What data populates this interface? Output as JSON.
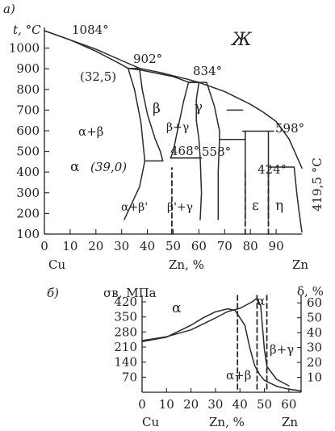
{
  "chart_data": [
    {
      "panel_label": "а)",
      "type": "line",
      "ylabel": "t, °C",
      "x_ticks": [
        "0",
        "10",
        "20",
        "30",
        "40",
        "50",
        "60",
        "70",
        "80",
        "90"
      ],
      "y_ticks": [
        "100",
        "200",
        "300",
        "400",
        "500",
        "600",
        "700",
        "800",
        "900",
        "1000"
      ],
      "x_end_labels": {
        "left": "Cu",
        "center": "Zn, %",
        "right": "Zn"
      },
      "xlim": [
        0,
        100
      ],
      "ylim": [
        100,
        1100
      ],
      "liquid_label": "Ж",
      "temperature_labels": [
        {
          "text": "1084°",
          "x": 0,
          "y": 1084
        },
        {
          "text": "902°",
          "x": 37,
          "y": 902
        },
        {
          "text": "834°",
          "x": 60,
          "y": 834
        },
        {
          "text": "598°",
          "x": 89,
          "y": 598
        },
        {
          "text": "468°",
          "x": 47,
          "y": 468
        },
        {
          "text": "558°",
          "x": 73,
          "y": 558
        },
        {
          "text": "424°",
          "x": 87,
          "y": 424
        },
        {
          "text": "419,5 °C",
          "x": 100,
          "y": 419.5
        }
      ],
      "composition_labels": [
        {
          "text": "(32,5)",
          "x": 32.5,
          "y": 902
        },
        {
          "text": "(39,0)",
          "x": 39.0,
          "y": 454
        }
      ],
      "phase_labels": [
        "β",
        "α+β",
        "α",
        "γ",
        "β+γ",
        "ε",
        "η",
        "α+β'",
        "β'+γ"
      ],
      "curves": [
        {
          "name": "liquidus",
          "x": [
            0,
            10,
            20,
            30,
            37,
            45,
            50,
            55,
            60,
            70,
            80,
            85,
            90,
            95,
            100
          ],
          "y": [
            1084,
            1040,
            995,
            940,
            902,
            882,
            866,
            851,
            834,
            790,
            728,
            690,
            645,
            560,
            419.5
          ]
        },
        {
          "name": "solidus",
          "x": [
            0,
            10,
            20,
            30,
            32.5,
            37,
            50,
            56,
            60
          ],
          "y": [
            1084,
            1040,
            985,
            920,
            902,
            895,
            862,
            835,
            834
          ]
        },
        {
          "name": "alpha_solvus",
          "x": [
            32.5,
            35,
            37.5,
            39,
            37,
            34,
            31
          ],
          "y": [
            902,
            800,
            640,
            454,
            330,
            250,
            170
          ]
        },
        {
          "name": "beta_left_boundary",
          "x": [
            37,
            38,
            40,
            43,
            45,
            46
          ],
          "y": [
            895,
            800,
            680,
            560,
            500,
            454
          ]
        },
        {
          "name": "beta_right_boundary",
          "x": [
            56,
            54,
            52,
            51,
            50,
            49
          ],
          "y": [
            835,
            740,
            620,
            560,
            500,
            468
          ]
        },
        {
          "name": "gamma_left_boundary",
          "x": [
            60,
            59,
            59,
            60,
            60.5,
            61,
            60.5
          ],
          "y": [
            834,
            750,
            650,
            560,
            468,
            300,
            170
          ]
        },
        {
          "name": "gamma_right_boundary",
          "x": [
            63,
            66,
            68,
            68,
            67.5,
            67.5
          ],
          "y": [
            834,
            720,
            600,
            558,
            400,
            170
          ]
        },
        {
          "name": "epsilon_left",
          "x": [
            78,
            78
          ],
          "y": [
            598,
            170
          ]
        },
        {
          "name": "epsilon_right",
          "x": [
            87,
            87
          ],
          "y": [
            598,
            170
          ]
        },
        {
          "name": "eta_boundary",
          "x": [
            97,
            98,
            99,
            100
          ],
          "y": [
            424,
            300,
            200,
            110
          ]
        }
      ],
      "isotherms": [
        {
          "y": 902,
          "x": [
            32.5,
            37
          ]
        },
        {
          "y": 834,
          "x": [
            56,
            63
          ]
        },
        {
          "y": 700,
          "x": [
            71,
            77
          ]
        },
        {
          "y": 598,
          "x": [
            77,
            89
          ]
        },
        {
          "y": 558,
          "x": [
            68,
            78
          ]
        },
        {
          "y": 468,
          "x": [
            49,
            61
          ]
        },
        {
          "y": 454,
          "x": [
            39,
            46
          ]
        },
        {
          "y": 424,
          "x": [
            87,
            97
          ]
        }
      ],
      "dashed_verticals": [
        {
          "x": 49.5,
          "y": [
            100,
            420
          ]
        },
        {
          "x": 78,
          "y": [
            100,
            400
          ]
        },
        {
          "x": 87,
          "y": [
            100,
            400
          ]
        }
      ]
    },
    {
      "panel_label": "б)",
      "type": "line",
      "ylabel_left": "σв, МПа",
      "ylabel_right": "δ, %",
      "x_ticks": [
        "0",
        "10",
        "20",
        "30",
        "40",
        "50",
        "60"
      ],
      "y_ticks_left": [
        "420",
        "350",
        "280",
        "210",
        "140",
        "70"
      ],
      "y_ticks_right": [
        "60",
        "50",
        "40",
        "30",
        "20",
        "10"
      ],
      "x_end_labels": {
        "left": "Cu",
        "center": "Zn, %",
        "right": "Zn"
      },
      "xlim": [
        0,
        65
      ],
      "ylim_left": [
        0,
        450
      ],
      "ylim_right": [
        0,
        65
      ],
      "phase_labels": [
        "α",
        "α'",
        "β+γ",
        "α+β"
      ],
      "series": [
        {
          "name": "σв",
          "x": [
            0,
            10,
            20,
            30,
            35,
            40,
            45,
            47,
            48.5,
            50,
            51,
            55,
            60
          ],
          "y": [
            240,
            258,
            290,
            345,
            375,
            390,
            420,
            438,
            400,
            200,
            120,
            60,
            30
          ]
        },
        {
          "name": "δ",
          "x": [
            0,
            10,
            20,
            25,
            30,
            35,
            38,
            40,
            42,
            44,
            46,
            48,
            50,
            55,
            60,
            65
          ],
          "y": [
            34,
            37,
            45,
            50,
            54,
            56,
            55,
            50,
            45,
            30,
            18,
            12,
            8,
            4,
            2,
            1
          ]
        }
      ],
      "dashed_verticals": [
        39,
        47,
        51
      ]
    }
  ]
}
